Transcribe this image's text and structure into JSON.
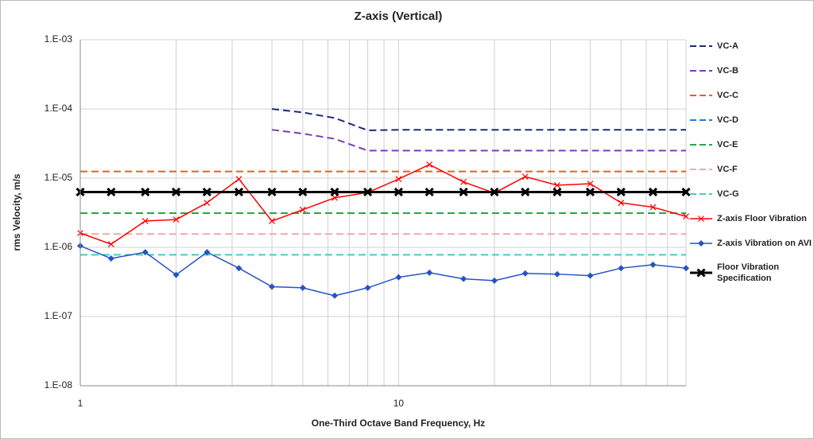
{
  "chart_data": {
    "type": "line",
    "title": "Z-axis (Vertical)",
    "x_label": "One-Third Octave Band Frequency, Hz",
    "y_label": "rms Velocity, m/s",
    "x_log": true,
    "y_log": true,
    "grid": true,
    "xlim": [
      1,
      80
    ],
    "xticks": [
      1,
      10
    ],
    "x_minor_grid": [
      2,
      3,
      4,
      5,
      6,
      7,
      8,
      9,
      20,
      30,
      40,
      50,
      60,
      70,
      80
    ],
    "ylim": [
      1e-08,
      0.001
    ],
    "yticks": [
      {
        "value": 1e-08,
        "label": "1.E-08"
      },
      {
        "value": 1e-07,
        "label": "1.E-07"
      },
      {
        "value": 1e-06,
        "label": "1.E-06"
      },
      {
        "value": 1e-05,
        "label": "1.E-05"
      },
      {
        "value": 0.0001,
        "label": "1.E-04"
      },
      {
        "value": 0.001,
        "label": "1.E-03"
      }
    ],
    "legend": "right",
    "x": [
      1,
      1.25,
      1.6,
      2,
      2.5,
      3.15,
      4,
      5,
      6.3,
      8,
      10,
      12.5,
      16,
      20,
      25,
      31.5,
      40,
      50,
      63,
      80
    ],
    "series": [
      {
        "name": "VC-A",
        "color": "#1f2a7a",
        "dash": true,
        "width": 2,
        "marker": null,
        "values": [
          null,
          null,
          null,
          null,
          null,
          null,
          0.0001,
          8.9e-05,
          7.4e-05,
          4.9e-05,
          5e-05,
          5e-05,
          5e-05,
          5e-05,
          5e-05,
          5e-05,
          5e-05,
          5e-05,
          5e-05,
          5e-05
        ]
      },
      {
        "name": "VC-B",
        "color": "#7a3fb0",
        "dash": true,
        "width": 2,
        "marker": null,
        "values": [
          null,
          null,
          null,
          null,
          null,
          null,
          5e-05,
          4.4e-05,
          3.7e-05,
          2.5e-05,
          2.5e-05,
          2.5e-05,
          2.5e-05,
          2.5e-05,
          2.5e-05,
          2.5e-05,
          2.5e-05,
          2.5e-05,
          2.5e-05,
          2.5e-05
        ]
      },
      {
        "name": "VC-C",
        "color": "#e0622a",
        "dash": true,
        "width": 2,
        "marker": null,
        "values": [
          1.25e-05,
          1.25e-05,
          1.25e-05,
          1.25e-05,
          1.25e-05,
          1.25e-05,
          1.25e-05,
          1.25e-05,
          1.25e-05,
          1.25e-05,
          1.25e-05,
          1.25e-05,
          1.25e-05,
          1.25e-05,
          1.25e-05,
          1.25e-05,
          1.25e-05,
          1.25e-05,
          1.25e-05,
          1.25e-05
        ]
      },
      {
        "name": "VC-D",
        "color": "#2e75d6",
        "dash": true,
        "width": 2,
        "marker": null,
        "values": [
          6.25e-06,
          6.25e-06,
          6.25e-06,
          6.25e-06,
          6.25e-06,
          6.25e-06,
          6.25e-06,
          6.25e-06,
          6.25e-06,
          6.25e-06,
          6.25e-06,
          6.25e-06,
          6.25e-06,
          6.25e-06,
          6.25e-06,
          6.25e-06,
          6.25e-06,
          6.25e-06,
          6.25e-06,
          6.25e-06
        ]
      },
      {
        "name": "VC-E",
        "color": "#22a84a",
        "dash": true,
        "width": 2,
        "marker": null,
        "values": [
          3.12e-06,
          3.12e-06,
          3.12e-06,
          3.12e-06,
          3.12e-06,
          3.12e-06,
          3.12e-06,
          3.12e-06,
          3.12e-06,
          3.12e-06,
          3.12e-06,
          3.12e-06,
          3.12e-06,
          3.12e-06,
          3.12e-06,
          3.12e-06,
          3.12e-06,
          3.12e-06,
          3.12e-06,
          3.12e-06
        ]
      },
      {
        "name": "VC-F",
        "color": "#f4a6a6",
        "dash": true,
        "width": 2,
        "marker": null,
        "values": [
          1.56e-06,
          1.56e-06,
          1.56e-06,
          1.56e-06,
          1.56e-06,
          1.56e-06,
          1.56e-06,
          1.56e-06,
          1.56e-06,
          1.56e-06,
          1.56e-06,
          1.56e-06,
          1.56e-06,
          1.56e-06,
          1.56e-06,
          1.56e-06,
          1.56e-06,
          1.56e-06,
          1.56e-06,
          1.56e-06
        ]
      },
      {
        "name": "VC-G",
        "color": "#4cc9c0",
        "dash": true,
        "width": 2,
        "marker": null,
        "values": [
          7.8e-07,
          7.8e-07,
          7.8e-07,
          7.8e-07,
          7.8e-07,
          7.8e-07,
          7.8e-07,
          7.8e-07,
          7.8e-07,
          7.8e-07,
          7.8e-07,
          7.8e-07,
          7.8e-07,
          7.8e-07,
          7.8e-07,
          7.8e-07,
          7.8e-07,
          7.8e-07,
          7.8e-07,
          7.8e-07
        ]
      },
      {
        "name": "Z-axis Floor Vibration",
        "color": "#ff0000",
        "dash": false,
        "width": 1.5,
        "marker": "x",
        "values": [
          1.61e-06,
          1.11e-06,
          2.4e-06,
          2.52e-06,
          4.4e-06,
          9.7e-06,
          2.4e-06,
          3.5e-06,
          5.2e-06,
          6.2e-06,
          9.7e-06,
          1.57e-05,
          8.8e-06,
          6.1e-06,
          1.05e-05,
          7.9e-06,
          8.3e-06,
          4.4e-06,
          3.8e-06,
          2.8e-06
        ]
      },
      {
        "name": "Z-axis Vibration on AVI",
        "color": "#2653c4",
        "dash": false,
        "width": 1.5,
        "marker": "diamond",
        "values": [
          1.05e-06,
          6.9e-07,
          8.5e-07,
          4e-07,
          8.5e-07,
          5e-07,
          2.7e-07,
          2.6e-07,
          2e-07,
          2.6e-07,
          3.7e-07,
          4.3e-07,
          3.5e-07,
          3.3e-07,
          4.2e-07,
          4.1e-07,
          3.9e-07,
          5e-07,
          5.6e-07,
          5e-07
        ]
      },
      {
        "name": "Floor Vibration Specification",
        "color": "#000000",
        "dash": false,
        "width": 3,
        "marker": "X",
        "values": [
          6.3e-06,
          6.3e-06,
          6.3e-06,
          6.3e-06,
          6.3e-06,
          6.3e-06,
          6.3e-06,
          6.3e-06,
          6.3e-06,
          6.3e-06,
          6.3e-06,
          6.3e-06,
          6.3e-06,
          6.3e-06,
          6.3e-06,
          6.3e-06,
          6.3e-06,
          6.3e-06,
          6.3e-06,
          6.3e-06
        ]
      }
    ]
  }
}
